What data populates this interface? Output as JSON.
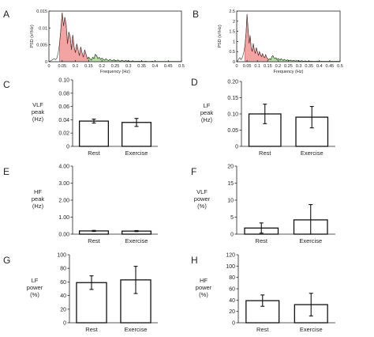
{
  "colors": {
    "vlf_fill": "#f4a3a3",
    "vlf_line": "#c65050",
    "lf_fill": "#b8e0a6",
    "lf_line": "#5aa345",
    "hf_fill": "#ffffff",
    "bar_fill": "#ffffff"
  },
  "chart_data": [
    {
      "panel": "A",
      "type": "area",
      "xlabel": "Frequency (Hz)",
      "ylabel": "PSD (s²/Hz)",
      "xlim": [
        0,
        0.5
      ],
      "ylim": [
        0,
        0.017
      ],
      "xticks": [
        "0",
        "0.05",
        "0.1",
        "0.15",
        "0.2",
        "0.25",
        "0.3",
        "0.35",
        "0.4",
        "0.45",
        "0.5"
      ],
      "yticks": [
        "0",
        "0.005",
        "0.01",
        "0.015"
      ],
      "bands": [
        0.04,
        0.15
      ],
      "x": [
        0.0,
        0.005,
        0.01,
        0.015,
        0.02,
        0.025,
        0.03,
        0.035,
        0.04,
        0.045,
        0.05,
        0.055,
        0.06,
        0.065,
        0.07,
        0.075,
        0.08,
        0.085,
        0.09,
        0.095,
        0.1,
        0.105,
        0.11,
        0.115,
        0.12,
        0.125,
        0.13,
        0.135,
        0.14,
        0.145,
        0.15,
        0.155,
        0.16,
        0.165,
        0.17,
        0.175,
        0.18,
        0.185,
        0.19,
        0.195,
        0.2,
        0.205,
        0.21,
        0.215,
        0.22,
        0.225,
        0.23,
        0.235,
        0.24,
        0.245,
        0.25,
        0.255,
        0.26,
        0.265,
        0.27,
        0.275,
        0.28,
        0.285,
        0.29,
        0.295,
        0.3,
        0.305,
        0.31,
        0.315,
        0.32,
        0.325,
        0.33,
        0.335,
        0.34,
        0.345,
        0.35,
        0.355,
        0.36,
        0.365,
        0.37,
        0.375,
        0.38,
        0.385,
        0.39,
        0.395,
        0.4,
        0.405,
        0.41,
        0.415,
        0.42,
        0.425,
        0.43,
        0.435,
        0.44,
        0.445,
        0.45,
        0.455,
        0.46,
        0.465,
        0.47,
        0.475,
        0.48,
        0.485,
        0.49,
        0.495,
        0.5
      ],
      "y": [
        0,
        0.0002,
        0.0005,
        0.0008,
        0.001,
        0.0007,
        0.0012,
        0.003,
        0.006,
        0.011,
        0.0165,
        0.012,
        0.015,
        0.0125,
        0.006,
        0.01,
        0.0085,
        0.004,
        0.009,
        0.005,
        0.003,
        0.006,
        0.004,
        0.002,
        0.005,
        0.003,
        0.0015,
        0.004,
        0.0025,
        0.001,
        0.0015,
        0.001,
        0.0005,
        0.0015,
        0.001,
        0.0025,
        0.002,
        0.001,
        0.0015,
        0.0008,
        0.0012,
        0.0008,
        0.0005,
        0.001,
        0.0006,
        0.0004,
        0.0008,
        0.0005,
        0.0003,
        0.0007,
        0.0004,
        0.0003,
        0.0006,
        0.0003,
        0.0002,
        0.0005,
        0.0003,
        0.0002,
        0.0004,
        0.0002,
        0.0003,
        0.0002,
        0.0001,
        0.0003,
        0.0002,
        0.0001,
        0.0002,
        0.0001,
        0.0002,
        0.0001,
        0.0002,
        0.0001,
        0.0001,
        0.0002,
        0.0001,
        0.0001,
        0.0001,
        0.0001,
        0.0002,
        0.0001,
        0.0001,
        0.0001,
        0.0001,
        0.0001,
        0.0001,
        0.0001,
        0.0001,
        0.0001,
        0.0001,
        0.0001,
        0.0001,
        0.0001,
        0.0001,
        0.0001,
        0.0001,
        0.0001,
        0.0001,
        0.0001,
        0.0001,
        0.0001,
        0.0001
      ]
    },
    {
      "panel": "B",
      "type": "area",
      "xlabel": "Frequency (Hz)",
      "ylabel": "PSD (s²/Hz)",
      "xlim": [
        0,
        0.5
      ],
      "ylim": [
        0,
        2.5
      ],
      "xticks": [
        "0",
        "0.05",
        "0.1",
        "0.15",
        "0.2",
        "0.25",
        "0.3",
        "0.35",
        "0.4",
        "0.45",
        "0.5"
      ],
      "yticks": [
        "0",
        "0.5",
        "1",
        "1.5",
        "2",
        "2.5"
      ],
      "bands": [
        0.04,
        0.15
      ],
      "x": [
        0.0,
        0.005,
        0.01,
        0.015,
        0.02,
        0.025,
        0.03,
        0.035,
        0.04,
        0.045,
        0.05,
        0.055,
        0.06,
        0.065,
        0.07,
        0.075,
        0.08,
        0.085,
        0.09,
        0.095,
        0.1,
        0.105,
        0.11,
        0.115,
        0.12,
        0.125,
        0.13,
        0.135,
        0.14,
        0.145,
        0.15,
        0.155,
        0.16,
        0.165,
        0.17,
        0.175,
        0.18,
        0.185,
        0.19,
        0.195,
        0.2,
        0.205,
        0.21,
        0.215,
        0.22,
        0.225,
        0.23,
        0.235,
        0.24,
        0.245,
        0.25,
        0.255,
        0.26,
        0.265,
        0.27,
        0.275,
        0.28,
        0.285,
        0.29,
        0.295,
        0.3,
        0.305,
        0.31,
        0.315,
        0.32,
        0.325,
        0.33,
        0.335,
        0.34,
        0.345,
        0.35,
        0.355,
        0.36,
        0.365,
        0.37,
        0.375,
        0.38,
        0.385,
        0.39,
        0.395,
        0.4,
        0.405,
        0.41,
        0.415,
        0.42,
        0.425,
        0.43,
        0.435,
        0.44,
        0.445,
        0.45,
        0.455,
        0.46,
        0.465,
        0.47,
        0.475,
        0.48,
        0.485,
        0.49,
        0.495,
        0.5
      ],
      "y": [
        0,
        0.05,
        0.15,
        0.2,
        0.1,
        0.15,
        0.3,
        0.5,
        0.8,
        1.4,
        2.35,
        1.6,
        0.9,
        1.3,
        0.7,
        0.5,
        0.9,
        0.6,
        0.4,
        0.7,
        0.5,
        0.3,
        0.5,
        0.35,
        0.25,
        0.4,
        0.25,
        0.2,
        0.35,
        0.2,
        0.15,
        0.1,
        0.15,
        0.1,
        0.25,
        0.3,
        0.2,
        0.15,
        0.2,
        0.1,
        0.15,
        0.12,
        0.08,
        0.15,
        0.1,
        0.06,
        0.12,
        0.08,
        0.05,
        0.1,
        0.07,
        0.05,
        0.08,
        0.05,
        0.04,
        0.07,
        0.05,
        0.03,
        0.06,
        0.04,
        0.05,
        0.03,
        0.03,
        0.05,
        0.03,
        0.02,
        0.04,
        0.03,
        0.02,
        0.03,
        0.02,
        0.02,
        0.03,
        0.02,
        0.02,
        0.02,
        0.02,
        0.02,
        0.03,
        0.02,
        0.02,
        0.02,
        0.02,
        0.02,
        0.02,
        0.02,
        0.02,
        0.02,
        0.02,
        0.02,
        0.02,
        0.02,
        0.02,
        0.02,
        0.02,
        0.02,
        0.02,
        0.02,
        0.02,
        0.02,
        0.02
      ]
    },
    {
      "panel": "C",
      "type": "bar",
      "ylabel": [
        "VLF",
        "peak",
        "(Hz)"
      ],
      "categories": [
        "Rest",
        "Exercise"
      ],
      "values": [
        0.038,
        0.036
      ],
      "errors": [
        0.003,
        0.006
      ],
      "ylim": [
        0,
        0.1
      ],
      "yticks": [
        "0",
        "0.02",
        "0.04",
        "0.06",
        "0.08",
        "0.10"
      ]
    },
    {
      "panel": "D",
      "type": "bar",
      "ylabel": [
        "LF",
        "peak",
        "(Hz)"
      ],
      "categories": [
        "Rest",
        "Exercise"
      ],
      "values": [
        0.1,
        0.09
      ],
      "errors": [
        0.03,
        0.033
      ],
      "ylim": [
        0,
        0.2
      ],
      "yticks": [
        "0",
        "0.05",
        "0.10",
        "0.15",
        "0.20"
      ]
    },
    {
      "panel": "E",
      "type": "bar",
      "ylabel": [
        "HF",
        "peak",
        "(Hz)"
      ],
      "categories": [
        "Rest",
        "Exercise"
      ],
      "values": [
        0.19,
        0.18
      ],
      "errors": [
        0.03,
        0.03
      ],
      "ylim": [
        0,
        4.0
      ],
      "yticks": [
        "0.00",
        "1.00",
        "2.00",
        "3.00",
        "4.00"
      ]
    },
    {
      "panel": "F",
      "type": "bar",
      "ylabel": [
        "VLF",
        "power",
        "(%)"
      ],
      "categories": [
        "Rest",
        "Exercise"
      ],
      "values": [
        1.8,
        4.2
      ],
      "errors": [
        1.5,
        4.5
      ],
      "ylim": [
        0,
        20
      ],
      "yticks": [
        "0",
        "5",
        "10",
        "15",
        "20"
      ]
    },
    {
      "panel": "G",
      "type": "bar",
      "ylabel": [
        "LF",
        "power",
        "(%)"
      ],
      "categories": [
        "Rest",
        "Exercise"
      ],
      "values": [
        59,
        63
      ],
      "errors": [
        10,
        20
      ],
      "ylim": [
        0,
        100
      ],
      "yticks": [
        "0",
        "20",
        "40",
        "60",
        "80",
        "100"
      ]
    },
    {
      "panel": "H",
      "type": "bar",
      "ylabel": [
        "HF",
        "power",
        "(%)"
      ],
      "categories": [
        "Rest",
        "Exercise"
      ],
      "values": [
        39,
        32
      ],
      "errors": [
        10,
        20
      ],
      "ylim": [
        0,
        120
      ],
      "yticks": [
        "0",
        "20",
        "40",
        "60",
        "80",
        "100",
        "120"
      ]
    }
  ]
}
